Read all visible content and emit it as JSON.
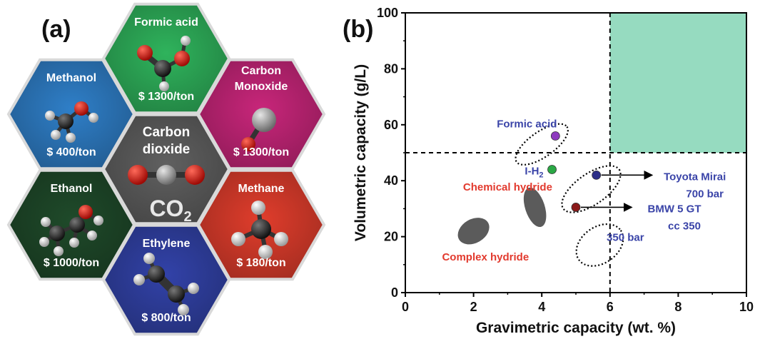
{
  "panel_a": {
    "label": "(a)",
    "center": {
      "line1": "Carbon",
      "line2": "dioxide",
      "formula": "CO",
      "subscript": "2"
    },
    "tiles": [
      {
        "id": "formic-acid",
        "name_lines": [
          "Formic acid"
        ],
        "price": "$ 1300/ton",
        "color": "#2fb35c",
        "molecule": "formic-acid-molecule-icon"
      },
      {
        "id": "methanol",
        "name_lines": [
          "Methanol"
        ],
        "price": "$ 400/ton",
        "color": "#2f7fc8",
        "molecule": "methanol-molecule-icon"
      },
      {
        "id": "carbon-monoxide",
        "name_lines": [
          "Carbon",
          "Monoxide"
        ],
        "price": "$ 1300/ton",
        "color": "#c8267a",
        "molecule": "carbon-monoxide-molecule-icon"
      },
      {
        "id": "ethanol",
        "name_lines": [
          "Ethanol"
        ],
        "price": "$ 1000/ton",
        "color": "#1f4a2a",
        "molecule": "ethanol-molecule-icon"
      },
      {
        "id": "methane",
        "name_lines": [
          "Methane"
        ],
        "price": "$ 180/ton",
        "color": "#e03d2c",
        "molecule": "methane-molecule-icon"
      },
      {
        "id": "ethylene",
        "name_lines": [
          "Ethylene"
        ],
        "price": "$ 800/ton",
        "color": "#3242a8",
        "molecule": "ethylene-molecule-icon"
      }
    ]
  },
  "panel_b": {
    "label": "(b)"
  },
  "chart_data": {
    "type": "scatter",
    "xlabel": "Gravimetric capacity (wt. %)",
    "ylabel": "Volumetric capacity (g/L)",
    "xlim": [
      0,
      10
    ],
    "ylim": [
      0,
      100
    ],
    "xticks": [
      0,
      2,
      4,
      6,
      8,
      10
    ],
    "yticks": [
      0,
      20,
      40,
      60,
      80,
      100
    ],
    "grid": false,
    "target_region": {
      "x": [
        6,
        10
      ],
      "y": [
        50,
        100
      ],
      "color": "#96dbc0"
    },
    "threshold_lines": {
      "x": 6,
      "y": 50
    },
    "points": [
      {
        "name": "Formic acid",
        "x": 4.4,
        "y": 56,
        "color": "#8e3bbf",
        "label_color": "#3a44a8"
      },
      {
        "name_main": "I-H",
        "name_sub": "2",
        "x": 4.3,
        "y": 44,
        "color": "#2aa845",
        "label_color": "#3a44a8"
      },
      {
        "name": "Toyota Mirai",
        "name2": "700 bar",
        "x": 5.6,
        "y": 42,
        "color": "#2d2f88",
        "label_color": "#3a44a8"
      },
      {
        "name": "BMW 5 GT",
        "name2": "cc 350",
        "x": 5.0,
        "y": 30.5,
        "color": "#8b1a1a",
        "label_color": "#3a44a8"
      }
    ],
    "regions": [
      {
        "name": "Chemical hydride",
        "cx": 3.8,
        "cy": 30.5,
        "rx": 0.6,
        "ry": 3.5,
        "angle": -18,
        "color": "#5b5b5b",
        "label_color": "#e23a2e"
      },
      {
        "name": "Complex hydride",
        "cx": 2.0,
        "cy": 22,
        "rx": 0.35,
        "ry": 6.0,
        "angle": -30,
        "color": "#5b5b5b",
        "label_color": "#e23a2e"
      }
    ],
    "dotted_ellipses": [
      {
        "cx": 4.0,
        "cy": 53,
        "rx": 0.9,
        "ry": 4.5,
        "angle": -35
      },
      {
        "cx": 5.45,
        "cy": 37,
        "rx": 1.0,
        "ry": 5.5,
        "angle": -35
      },
      {
        "cx": 5.7,
        "cy": 17,
        "rx": 0.75,
        "ry": 6.5,
        "angle": -35
      }
    ],
    "extra_labels": [
      {
        "text": "350 bar",
        "x": 6.45,
        "y": 18.5,
        "color": "#3a44a8"
      }
    ]
  }
}
